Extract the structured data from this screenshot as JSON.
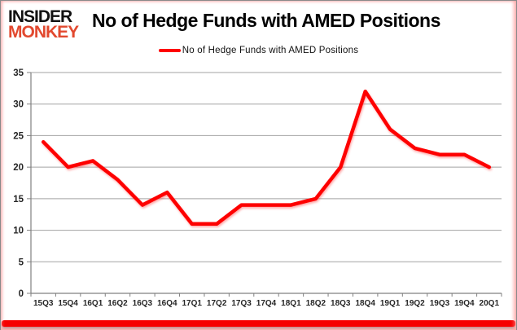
{
  "header": {
    "logo_line1": "INSIDER",
    "logo_line2": "MONKEY",
    "title": "No of Hedge Funds with AMED Positions"
  },
  "legend": {
    "label": "No of Hedge Funds with AMED Positions"
  },
  "chart_data": {
    "type": "line",
    "title": "No of Hedge Funds with AMED Positions",
    "series_name": "No of Hedge Funds with AMED Positions",
    "categories": [
      "15Q3",
      "15Q4",
      "16Q1",
      "16Q2",
      "16Q3",
      "16Q4",
      "17Q1",
      "17Q2",
      "17Q3",
      "17Q4",
      "18Q1",
      "18Q2",
      "18Q3",
      "18Q4",
      "19Q1",
      "19Q2",
      "19Q3",
      "19Q4",
      "20Q1"
    ],
    "values": [
      24,
      20,
      21,
      18,
      14,
      16,
      11,
      11,
      14,
      14,
      14,
      15,
      20,
      32,
      26,
      23,
      22,
      22,
      20
    ],
    "xlabel": "",
    "ylabel": "",
    "ylim": [
      0,
      35
    ],
    "ytick_interval": 5,
    "grid": true,
    "legend_position": "top"
  },
  "colors": {
    "line": "#fe0000",
    "logo_accent": "#e2492f",
    "grid": "#a3a3a3",
    "axis": "#808080",
    "tick_label": "#262626",
    "bottom_bar": "#f60000"
  }
}
